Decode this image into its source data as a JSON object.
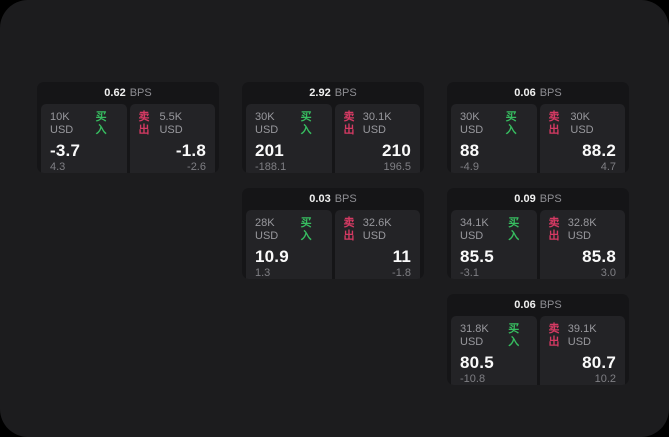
{
  "labels": {
    "buy": "买入",
    "sell": "卖出",
    "bps_unit": "BPS"
  },
  "colors": {
    "page_background": "#000000",
    "window_background": "#1c1c1e",
    "card_background": "#151517",
    "panel_background": "#232326",
    "buy_green": "#37bd60",
    "sell_red": "#d53a63",
    "primary_text": "#fafafa",
    "secondary_text": "#98989d",
    "muted_text": "#7f7f84"
  },
  "cards": [
    {
      "col": "1",
      "bps": "0.62",
      "buy": {
        "amount": "10K USD",
        "value": "-3.7",
        "sub": "4.3"
      },
      "sell": {
        "amount": "5.5K USD",
        "value": "-1.8",
        "sub": "-2.6"
      }
    },
    {
      "col": "2",
      "bps": "2.92",
      "buy": {
        "amount": "30K USD",
        "value": "201",
        "sub": "-188.1"
      },
      "sell": {
        "amount": "30.1K USD",
        "value": "210",
        "sub": "196.5"
      }
    },
    {
      "col": "2",
      "bps": "0.03",
      "buy": {
        "amount": "28K USD",
        "value": "10.9",
        "sub": "1.3"
      },
      "sell": {
        "amount": "32.6K USD",
        "value": "11",
        "sub": "-1.8"
      }
    },
    {
      "col": "3",
      "bps": "0.06",
      "buy": {
        "amount": "30K USD",
        "value": "88",
        "sub": "-4.9"
      },
      "sell": {
        "amount": "30K USD",
        "value": "88.2",
        "sub": "4.7"
      }
    },
    {
      "col": "3",
      "bps": "0.09",
      "buy": {
        "amount": "34.1K USD",
        "value": "85.5",
        "sub": "-3.1"
      },
      "sell": {
        "amount": "32.8K USD",
        "value": "85.8",
        "sub": "3.0"
      }
    },
    {
      "col": "3",
      "bps": "0.06",
      "buy": {
        "amount": "31.8K USD",
        "value": "80.5",
        "sub": "-10.8"
      },
      "sell": {
        "amount": "39.1K USD",
        "value": "80.7",
        "sub": "10.2"
      }
    }
  ]
}
